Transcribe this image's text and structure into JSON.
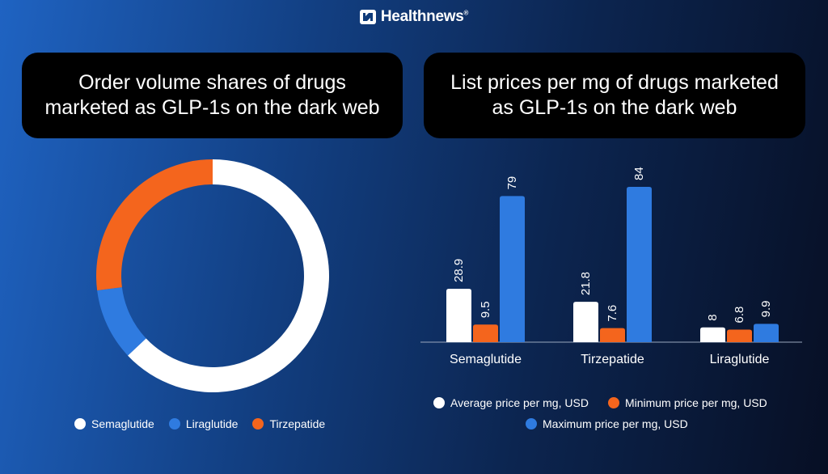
{
  "brand": {
    "name": "Healthnews",
    "reg": "®"
  },
  "left_title": {
    "line1": "Order volume shares of drugs",
    "line2": "marketed as GLP-1s  on the dark web"
  },
  "right_title": {
    "line1": "List prices per mg of drugs marketed",
    "line2": "as GLP-1s on the dark web"
  },
  "colors": {
    "semaglutide": "#ffffff",
    "liraglutide": "#2f7be0",
    "tirzepatide": "#f4651d",
    "average": "#ffffff",
    "minimum": "#f4651d",
    "maximum": "#2f7be0"
  },
  "chart_data": [
    {
      "type": "pie",
      "variant": "donut",
      "title": "Order volume shares of drugs marketed as GLP-1s on the dark web",
      "categories": [
        "Semaglutide",
        "Liraglutide",
        "Tirzepatide"
      ],
      "values": [
        63,
        10,
        27
      ],
      "legend": [
        "Semaglutide",
        "Liraglutide",
        "Tirzepatide"
      ],
      "legend_position": "bottom"
    },
    {
      "type": "bar",
      "title": "List prices per mg of drugs marketed as GLP-1s on the dark web",
      "categories": [
        "Semaglutide",
        "Tirzepatide",
        "Liraglutide"
      ],
      "series": [
        {
          "name": "Average price per mg, USD",
          "values": [
            28.9,
            21.8,
            8
          ]
        },
        {
          "name": "Minimum price per mg, USD",
          "values": [
            9.5,
            7.6,
            6.8
          ]
        },
        {
          "name": "Maximum price per mg, USD",
          "values": [
            79,
            84,
            9.9
          ]
        }
      ],
      "data_labels": [
        [
          "28.9",
          "21.8",
          "8"
        ],
        [
          "9.5",
          "7.6",
          "6.8"
        ],
        [
          "79",
          "84",
          "9.9"
        ]
      ],
      "ylim": [
        0,
        84
      ],
      "xlabel": "",
      "ylabel": "",
      "legend_position": "bottom"
    }
  ]
}
